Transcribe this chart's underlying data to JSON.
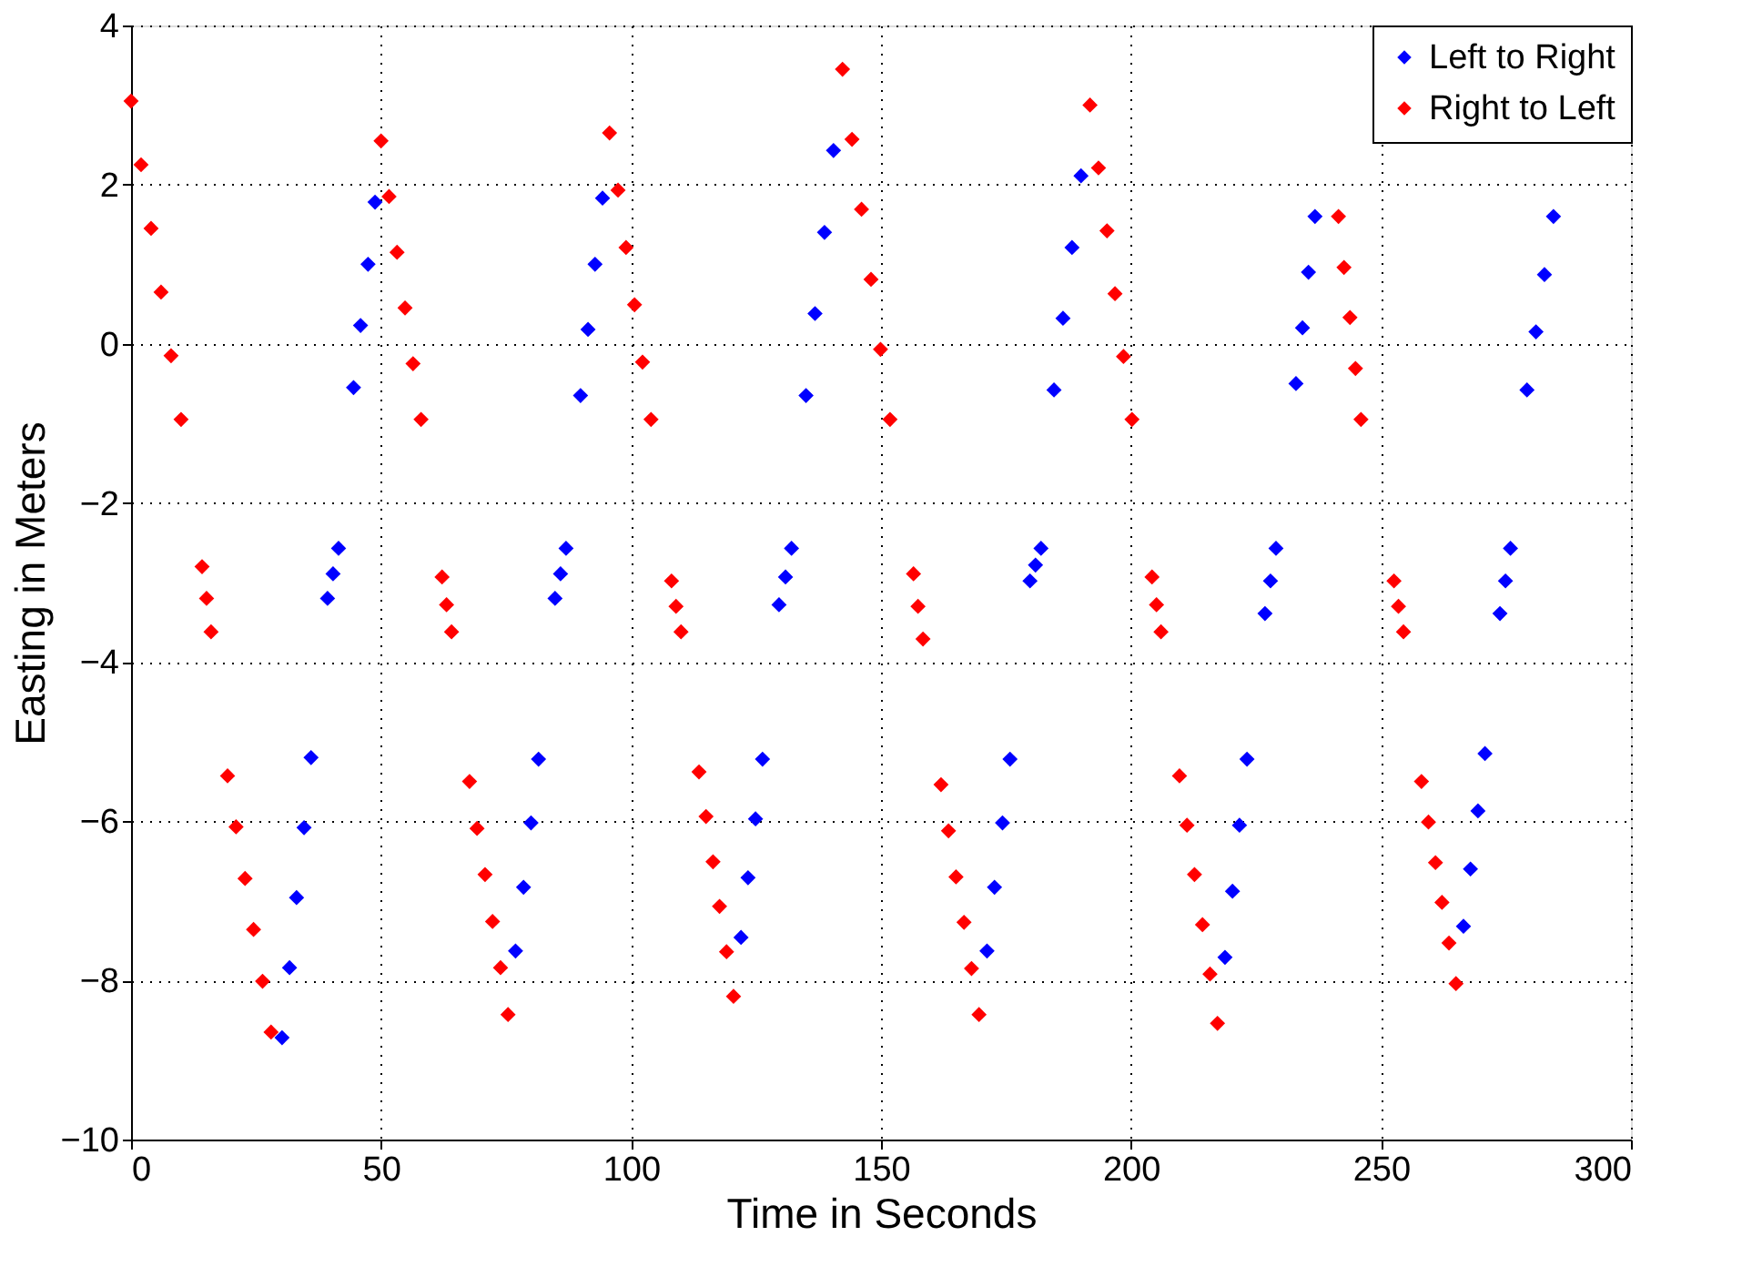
{
  "chart_data": {
    "type": "scatter",
    "xlabel": "Time in Seconds",
    "ylabel": "Easting in Meters",
    "xlim": [
      0,
      300
    ],
    "xticks": [
      0,
      50,
      100,
      150,
      200,
      250,
      300
    ],
    "ylim": [
      -10,
      4
    ],
    "yticks": [
      -10,
      -8,
      -6,
      -4,
      -2,
      0,
      2,
      4
    ],
    "grid": true,
    "legend": "top right",
    "marker": "diamond",
    "series": [
      {
        "name": "Left to Right",
        "color": "#0000ff",
        "x": [
          44.5,
          45.9,
          47.4,
          48.8,
          89.9,
          91.4,
          92.8,
          94.3,
          135,
          136.8,
          138.7,
          140.5,
          184.6,
          186.4,
          188.2,
          190,
          233,
          234.3,
          235.5,
          236.8,
          279.2,
          281,
          282.7,
          284.5,
          39.3,
          40.4,
          41.5,
          84.8,
          85.9,
          87,
          129.6,
          130.9,
          132.1,
          179.8,
          180.9,
          182,
          226.8,
          227.9,
          229,
          273.8,
          274.9,
          275.9,
          30.2,
          31.7,
          33.1,
          34.6,
          36,
          76.9,
          78.5,
          80,
          81.5,
          122,
          123.4,
          124.9,
          126.3,
          171.2,
          172.7,
          174.3,
          175.8,
          218.8,
          220.3,
          221.7,
          223.2,
          266.5,
          267.9,
          269.4,
          270.8
        ],
        "values": [
          -0.55,
          0.23,
          1,
          1.78,
          -0.65,
          0.18,
          1,
          1.83,
          -0.65,
          0.38,
          1.4,
          2.43,
          -0.58,
          0.32,
          1.21,
          2.11,
          -0.5,
          0.2,
          0.9,
          1.6,
          -0.58,
          0.15,
          0.87,
          1.6,
          -3.2,
          -2.89,
          -2.57,
          -3.2,
          -2.89,
          -2.57,
          -3.28,
          -2.93,
          -2.57,
          -2.98,
          -2.78,
          -2.57,
          -3.39,
          -2.98,
          -2.57,
          -3.39,
          -2.98,
          -2.57,
          -8.72,
          -7.84,
          -6.96,
          -6.08,
          -5.2,
          -7.63,
          -6.83,
          -6.02,
          -5.22,
          -7.46,
          -6.71,
          -5.97,
          -5.22,
          -7.63,
          -6.83,
          -6.02,
          -5.22,
          -7.71,
          -6.88,
          -6.05,
          -5.22,
          -7.32,
          -6.6,
          -5.87,
          -5.15
        ]
      },
      {
        "name": "Right to Left",
        "color": "#ff0000",
        "x": [
          0,
          2,
          4,
          6,
          8,
          10,
          50,
          51.6,
          53.2,
          54.8,
          56.4,
          58,
          95.7,
          97.4,
          99,
          100.7,
          102.3,
          104,
          142.3,
          144.2,
          146.1,
          148,
          149.9,
          151.8,
          191.8,
          193.5,
          195.2,
          196.8,
          198.5,
          200.2,
          241.5,
          242.6,
          243.8,
          244.9,
          246,
          14.2,
          15.1,
          16,
          62.2,
          63.1,
          64.1,
          108.1,
          109,
          110,
          156.5,
          157.4,
          158.4,
          204.2,
          205.1,
          206,
          252.6,
          253.5,
          254.5,
          19.3,
          21,
          22.8,
          24.5,
          26.3,
          28,
          67.7,
          69.2,
          70.8,
          72.3,
          73.9,
          75.4,
          113.6,
          115,
          116.4,
          117.7,
          119.1,
          120.5,
          162,
          163.5,
          165,
          166.6,
          168.1,
          169.6,
          209.7,
          211.2,
          212.7,
          214.3,
          215.8,
          217.3,
          258.1,
          259.5,
          260.9,
          262.2,
          263.6,
          265
        ],
        "values": [
          3.05,
          2.25,
          1.45,
          0.65,
          -0.15,
          -0.95,
          2.55,
          1.85,
          1.15,
          0.45,
          -0.25,
          -0.95,
          2.65,
          1.93,
          1.21,
          0.49,
          -0.23,
          -0.95,
          3.45,
          2.57,
          1.69,
          0.81,
          -0.07,
          -0.95,
          3,
          2.21,
          1.42,
          0.63,
          -0.16,
          -0.95,
          1.6,
          0.96,
          0.33,
          -0.31,
          -0.95,
          -2.8,
          -3.2,
          -3.62,
          -2.93,
          -3.28,
          -3.62,
          -2.98,
          -3.3,
          -3.62,
          -2.89,
          -3.3,
          -3.71,
          -2.93,
          -3.28,
          -3.62,
          -2.98,
          -3.3,
          -3.62,
          -5.43,
          -6.07,
          -6.72,
          -7.36,
          -8.01,
          -8.65,
          -5.5,
          -6.09,
          -6.67,
          -7.26,
          -7.84,
          -8.43,
          -5.38,
          -5.94,
          -6.51,
          -7.07,
          -7.64,
          -8.2,
          -5.54,
          -6.12,
          -6.7,
          -7.27,
          -7.85,
          -8.43,
          -5.43,
          -6.05,
          -6.67,
          -7.3,
          -7.92,
          -8.54,
          -5.5,
          -6.01,
          -6.52,
          -7.02,
          -7.53,
          -8.04
        ]
      }
    ]
  }
}
